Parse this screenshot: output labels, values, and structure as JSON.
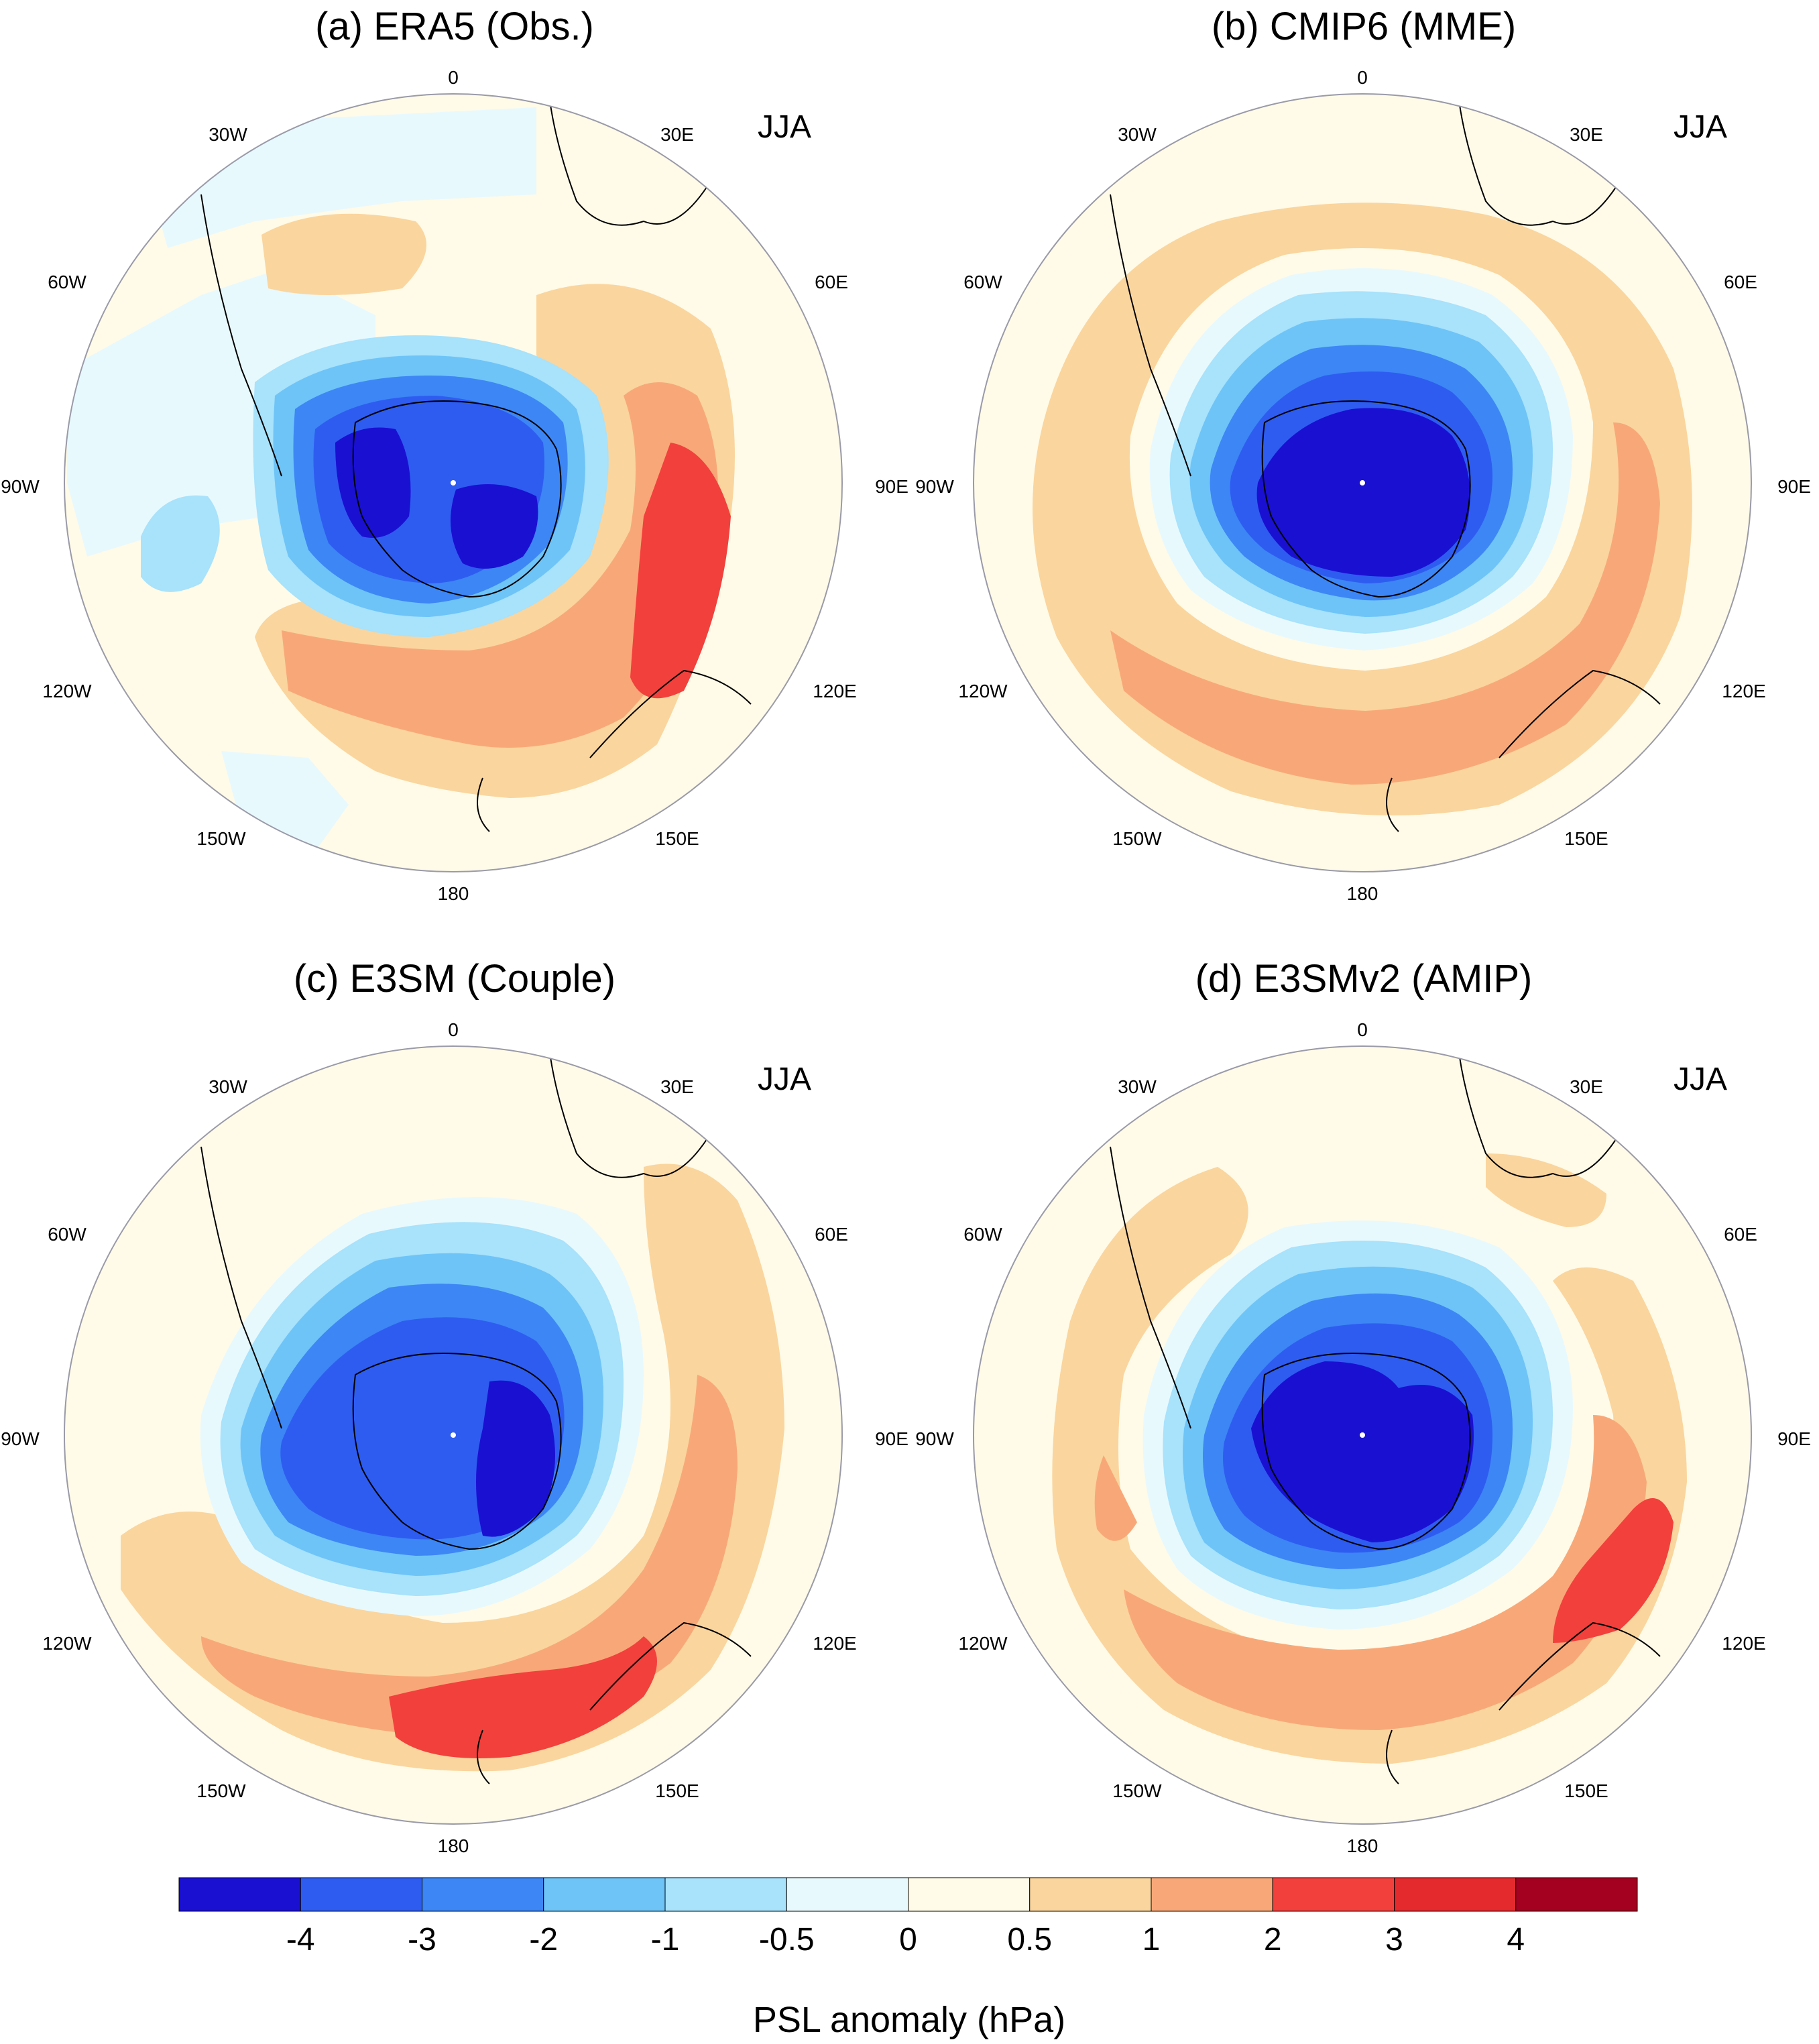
{
  "season": "JJA",
  "longitude_labels": [
    "0",
    "30E",
    "60E",
    "90E",
    "120E",
    "150E",
    "180",
    "150W",
    "120W",
    "90W",
    "60W",
    "30W"
  ],
  "panels": [
    {
      "id": "a",
      "title": "(a) ERA5 (Obs.)"
    },
    {
      "id": "b",
      "title": "(b) CMIP6 (MME)"
    },
    {
      "id": "c",
      "title": "(c) E3SM (Couple)"
    },
    {
      "id": "d",
      "title": "(d) E3SMv2 (AMIP)"
    }
  ],
  "colorbar": {
    "label": "PSL anomaly (hPa)",
    "levels": [
      "-4",
      "-3",
      "-2",
      "-1",
      "-0.5",
      "0",
      "0.5",
      "1",
      "2",
      "3",
      "4"
    ],
    "colors": [
      "#1a10d2",
      "#2e5cf0",
      "#3d86f5",
      "#6ec4f7",
      "#a8e2fb",
      "#e8f9fd",
      "#fffbe8",
      "#fad59e",
      "#f8a878",
      "#f2403c",
      "#e52a2e",
      "#a4001f"
    ]
  },
  "map_colors": {
    "ocean_bg": "#fffbe8",
    "coast": "#000000",
    "circle": "#9a9aa8"
  }
}
